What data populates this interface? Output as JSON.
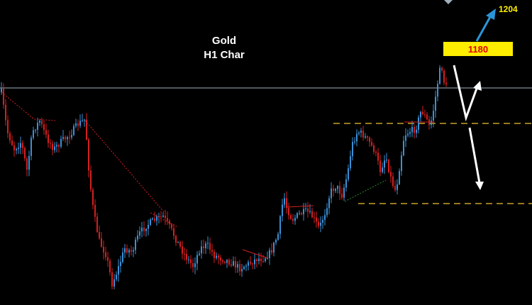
{
  "chart_data": {
    "type": "candlestick",
    "title": "Gold",
    "subtitle": "H1 Char",
    "colors": {
      "background": "#000000",
      "candle_up": "#3d8fd6",
      "candle_down": "#d42020",
      "resistance": "#c9a227",
      "trendline": "#d42020",
      "support_trend": "#2e8b2e",
      "reference_line": "#9fb0bb",
      "target_up_arrow": "#2b95d9",
      "scenario_arrows": "#ffffff",
      "label_box": "#ffee00",
      "label_text": "#e00000",
      "target_text": "#ffee00"
    },
    "annotations": {
      "current_price_label": "1180",
      "target_label": "1204"
    }
  }
}
